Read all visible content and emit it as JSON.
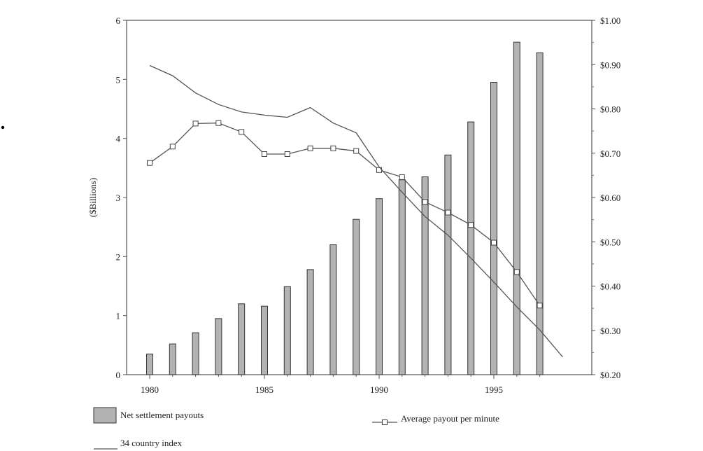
{
  "chart_data": {
    "type": "bar",
    "title": "",
    "ylabel": "($Billions)",
    "xlabel": "",
    "grid": false,
    "legend_position": "bottom-left",
    "x": [
      1980,
      1981,
      1982,
      1983,
      1984,
      1985,
      1986,
      1987,
      1988,
      1989,
      1990,
      1991,
      1992,
      1993,
      1994,
      1995,
      1996,
      1997
    ],
    "x_tick_labels": [
      "1980",
      "1985",
      "1990",
      "1995"
    ],
    "ylim": [
      0,
      6
    ],
    "y_tick_labels": [
      "0",
      "1",
      "2",
      "3",
      "4",
      "5",
      "6"
    ],
    "y2lim": [
      0.2,
      1.0
    ],
    "y2_tick_labels": [
      "$0.20",
      "$0.30",
      "$0.40",
      "$0.50",
      "$0.60",
      "$0.70",
      "$0.80",
      "$0.90",
      "$1.00"
    ],
    "bars": {
      "name": "Net settlement payouts",
      "axis": "left",
      "color": "#b3b3b3",
      "values": [
        0.35,
        0.52,
        0.71,
        0.95,
        1.2,
        1.16,
        1.49,
        1.78,
        2.2,
        2.63,
        2.98,
        3.3,
        3.35,
        3.72,
        4.28,
        4.95,
        5.63,
        5.45
      ]
    },
    "series": [
      {
        "name": "Average payout per minute",
        "axis": "right",
        "marker": "square",
        "x": [
          1980,
          1981,
          1982,
          1983,
          1984,
          1985,
          1986,
          1987,
          1988,
          1989,
          1990,
          1991,
          1992,
          1993,
          1994,
          1995,
          1996,
          1997
        ],
        "values": [
          0.678,
          0.715,
          0.767,
          0.768,
          0.748,
          0.698,
          0.698,
          0.711,
          0.711,
          0.705,
          0.662,
          0.646,
          0.59,
          0.566,
          0.538,
          0.498,
          0.432,
          0.356
        ]
      },
      {
        "name": "34 country index",
        "axis": "right",
        "marker": "none",
        "x": [
          1980,
          1981,
          1982,
          1983,
          1984,
          1985,
          1986,
          1987,
          1988,
          1989,
          1990,
          1991,
          1992,
          1993,
          1994,
          1995,
          1996,
          1997,
          1998
        ],
        "values": [
          0.898,
          0.875,
          0.836,
          0.81,
          0.793,
          0.786,
          0.781,
          0.803,
          0.768,
          0.746,
          0.669,
          0.612,
          0.557,
          0.515,
          0.463,
          0.409,
          0.353,
          0.301,
          0.24
        ]
      }
    ]
  }
}
